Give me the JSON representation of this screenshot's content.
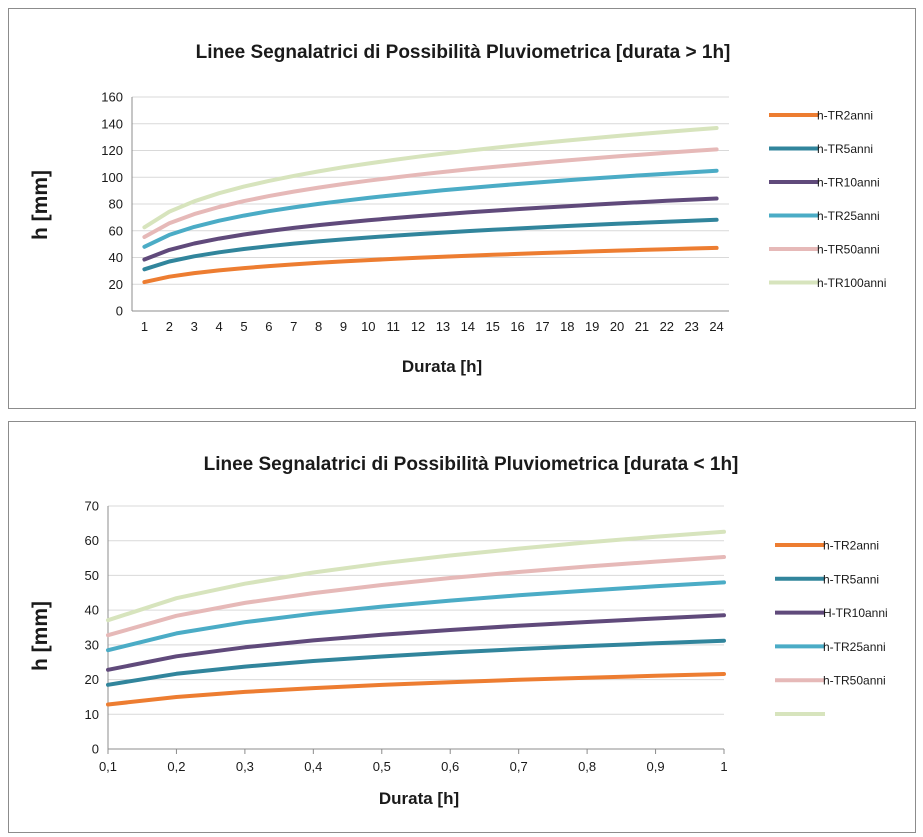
{
  "chart_data": [
    {
      "type": "line",
      "title": "Linee Segnalatrici di Possibilità Pluviometrica [durata > 1h]",
      "xlabel": "Durata [h]",
      "ylabel": "h [mm]",
      "ylim": [
        0,
        160
      ],
      "yticks": [
        "0",
        "20",
        "40",
        "60",
        "80",
        "100",
        "120",
        "140",
        "160"
      ],
      "x": [
        "1",
        "2",
        "3",
        "4",
        "5",
        "6",
        "7",
        "8",
        "9",
        "10",
        "11",
        "12",
        "13",
        "14",
        "15",
        "16",
        "17",
        "18",
        "19",
        "20",
        "21",
        "22",
        "23",
        "24"
      ],
      "grid": "horizontal",
      "legend_position": "right",
      "series": [
        {
          "name": "h-TR2anni",
          "color": "#ED7D31",
          "a": 21.6,
          "n": 0.246
        },
        {
          "name": "h-TR5anni",
          "color": "#31859C",
          "a": 31.2,
          "n": 0.246
        },
        {
          "name": "h-TR10anni",
          "color": "#604A7B",
          "a": 38.5,
          "n": 0.246
        },
        {
          "name": "h-TR25anni",
          "color": "#4BACC6",
          "a": 48.0,
          "n": 0.246
        },
        {
          "name": "h-TR50anni",
          "color": "#E6B9B8",
          "a": 55.3,
          "n": 0.246
        },
        {
          "name": "h-TR100anni",
          "color": "#D7E4BD",
          "a": 62.6,
          "n": 0.246
        }
      ]
    },
    {
      "type": "line",
      "title": "Linee Segnalatrici di Possibilità Pluviometrica [durata < 1h]",
      "xlabel": "Durata  [h]",
      "ylabel": "h [mm]",
      "ylim": [
        0,
        70
      ],
      "yticks": [
        "0",
        "10",
        "20",
        "30",
        "40",
        "50",
        "60",
        "70"
      ],
      "xticks": [
        "0,1",
        "0,2",
        "0,3",
        "0,4",
        "0,5",
        "0,6",
        "0,7",
        "0,8",
        "0,9",
        "1"
      ],
      "x": [
        0.1,
        0.2,
        0.3,
        0.4,
        0.5,
        0.6,
        0.7,
        0.8,
        0.9,
        1.0
      ],
      "grid": "horizontal",
      "legend_position": "right",
      "series": [
        {
          "name": "h-TR2anni",
          "color": "#ED7D31",
          "a": 21.6,
          "n": 0.227
        },
        {
          "name": "h-TR5anni",
          "color": "#31859C",
          "a": 31.2,
          "n": 0.227
        },
        {
          "name": "H-TR10anni",
          "color": "#604A7B",
          "a": 38.5,
          "n": 0.227
        },
        {
          "name": "h-TR25anni",
          "color": "#4BACC6",
          "a": 48.0,
          "n": 0.227
        },
        {
          "name": "h-TR50anni",
          "color": "#E6B9B8",
          "a": 55.3,
          "n": 0.227
        },
        {
          "name": "",
          "color": "#D7E4BD",
          "a": 62.6,
          "n": 0.227
        }
      ]
    }
  ]
}
